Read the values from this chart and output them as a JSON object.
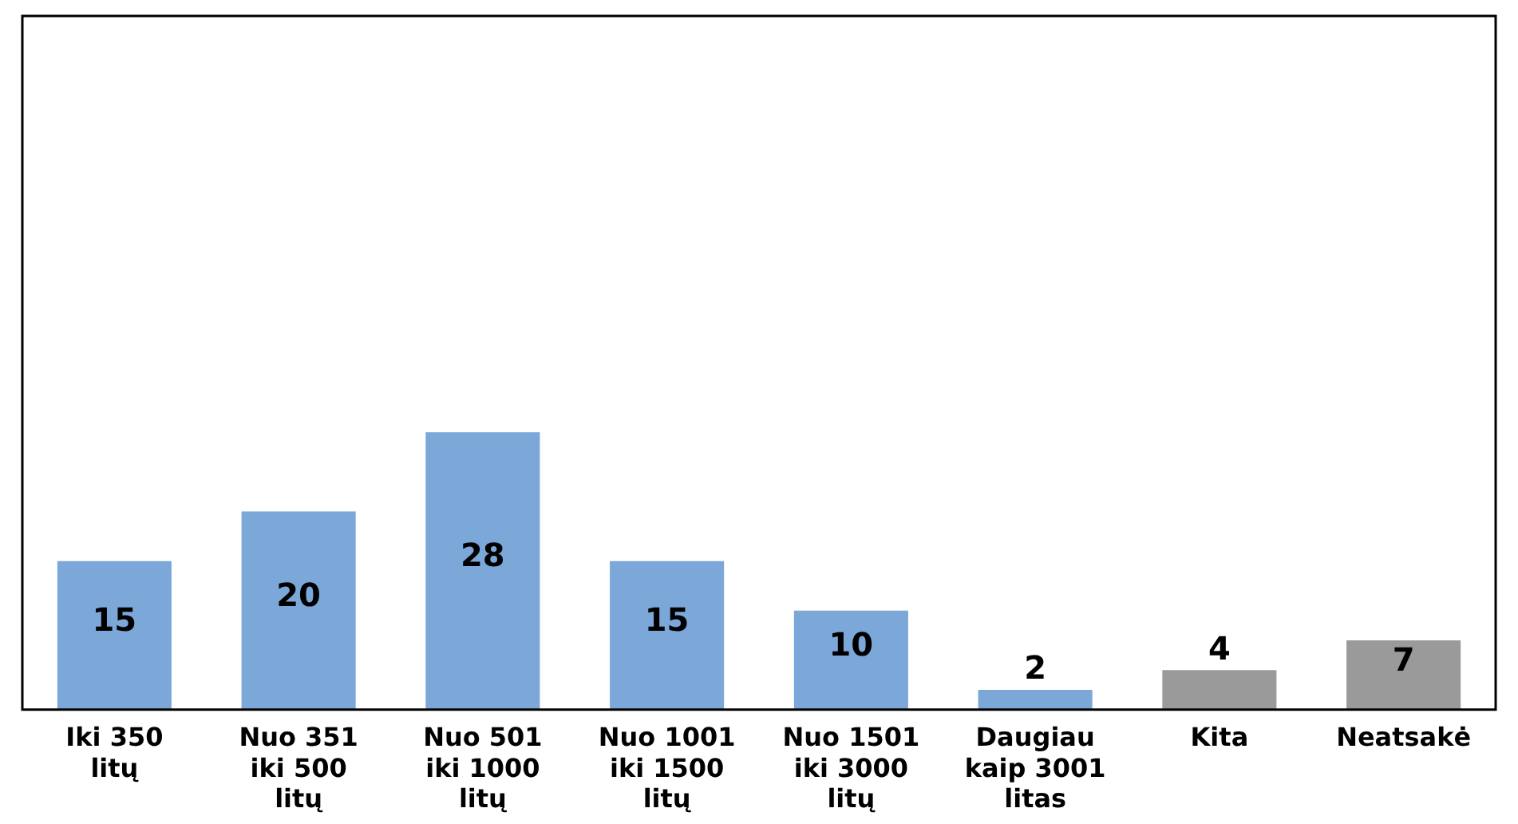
{
  "chart_data": {
    "type": "bar",
    "categories": [
      "Iki 350 litų",
      "Nuo 351 iki 500 litų",
      "Nuo 501 iki 1000 litų",
      "Nuo 1001 iki 1500 litų",
      "Nuo 1501 iki 3000 litų",
      "Daugiau kaip 3001 litas",
      "Kita",
      "Neatsakė"
    ],
    "values": [
      15,
      20,
      28,
      15,
      10,
      2,
      4,
      7
    ],
    "colors": [
      "#7ba7d9",
      "#7ba7d9",
      "#7ba7d9",
      "#7ba7d9",
      "#7ba7d9",
      "#7ba7d9",
      "#9a9a9a",
      "#9a9a9a"
    ],
    "ylim": [
      0,
      70
    ],
    "data_labels": true,
    "grid": false,
    "legend": false,
    "tick_labels": "x"
  }
}
